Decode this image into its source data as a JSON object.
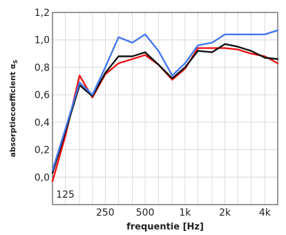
{
  "chart_data": {
    "type": "line",
    "xlabel": "frequentie [Hz]",
    "ylabel": "absorptiecoefficient α",
    "ylabel_subscript": "S",
    "ylim": [
      -0.2,
      1.2
    ],
    "yticks": [
      "0,0",
      "0,2",
      "0,4",
      "0,6",
      "0,8",
      "1,0",
      "1,2"
    ],
    "ytick_values": [
      0.0,
      0.2,
      0.4,
      0.6,
      0.8,
      1.0,
      1.2
    ],
    "x_scale": "log",
    "xlim": [
      100,
      5000
    ],
    "xticks": [
      {
        "label": "125",
        "value": 125
      },
      {
        "label": "250",
        "value": 250
      },
      {
        "label": "500",
        "value": 500
      },
      {
        "label": "1k",
        "value": 1000
      },
      {
        "label": "2k",
        "value": 2000
      },
      {
        "label": "4k",
        "value": 4000
      }
    ],
    "grid": true,
    "x": [
      100,
      125,
      160,
      200,
      250,
      315,
      400,
      500,
      630,
      800,
      1000,
      1250,
      1600,
      2000,
      2500,
      3150,
      4000,
      5000
    ],
    "series": [
      {
        "color": "#ee1111",
        "values": [
          -0.03,
          0.3,
          0.74,
          0.58,
          0.75,
          0.83,
          0.86,
          0.89,
          0.82,
          0.71,
          0.79,
          0.94,
          0.94,
          0.94,
          0.93,
          0.9,
          0.88,
          0.83
        ]
      },
      {
        "color": "#111111",
        "values": [
          0.03,
          0.33,
          0.67,
          0.59,
          0.76,
          0.88,
          0.88,
          0.91,
          0.82,
          0.72,
          0.8,
          0.92,
          0.91,
          0.97,
          0.95,
          0.92,
          0.87,
          0.86
        ]
      },
      {
        "color": "#4477ee",
        "values": [
          0.05,
          0.35,
          0.69,
          0.6,
          0.8,
          1.02,
          0.98,
          1.04,
          0.92,
          0.74,
          0.83,
          0.96,
          0.98,
          1.04,
          1.04,
          1.04,
          1.04,
          1.07
        ]
      }
    ]
  }
}
